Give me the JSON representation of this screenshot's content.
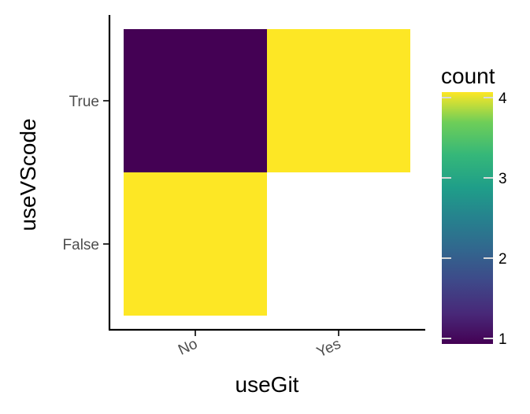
{
  "chart_data": {
    "type": "heatmap",
    "title": "",
    "xlabel": "useGit",
    "ylabel": "useVScode",
    "x_categories": [
      "No",
      "Yes"
    ],
    "y_categories": [
      "False",
      "True"
    ],
    "cells": [
      {
        "x": "No",
        "y": "True",
        "count": 1
      },
      {
        "x": "Yes",
        "y": "True",
        "count": 4
      },
      {
        "x": "No",
        "y": "False",
        "count": 4
      }
    ],
    "legend": {
      "title": "count",
      "breaks": [
        1,
        2,
        3,
        4
      ],
      "range": [
        1,
        4
      ],
      "colormap": "viridis",
      "position": "right"
    },
    "colors": {
      "low": "#440154",
      "high": "#fde725"
    },
    "grid": false
  }
}
